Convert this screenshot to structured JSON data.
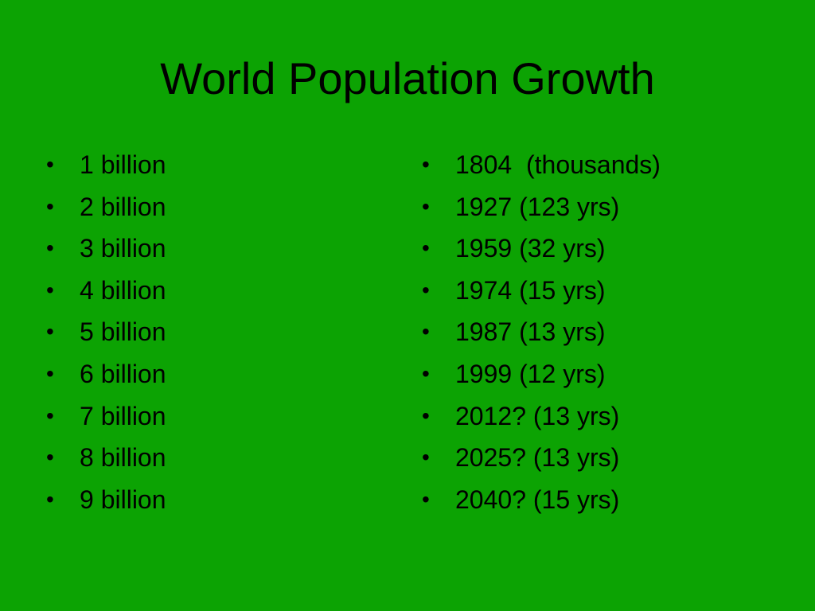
{
  "slide": {
    "title": "World Population Growth",
    "bullet_glyph": "•",
    "left_column": [
      "1 billion",
      "2 billion",
      "3 billion",
      "4 billion",
      "5 billion",
      "6 billion",
      "7 billion",
      "8 billion",
      "9 billion"
    ],
    "right_column": [
      "1804  (thousands)",
      "1927 (123 yrs)",
      "1959 (32 yrs)",
      "1974 (15 yrs)",
      "1987 (13 yrs)",
      "1999 (12 yrs)",
      "2012? (13 yrs)",
      "2025? (13 yrs)",
      "2040? (15 yrs)"
    ]
  },
  "colors": {
    "background": "#0ca303",
    "text": "#000000"
  }
}
